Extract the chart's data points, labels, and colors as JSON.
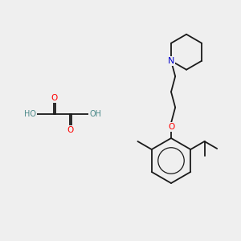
{
  "background_color": "#efefef",
  "bond_color": "#1a1a1a",
  "atom_colors": {
    "O": "#ff0000",
    "N": "#0000cc",
    "H": "#4a8888",
    "C": "#1a1a1a"
  },
  "figsize": [
    3.0,
    3.0
  ],
  "dpi": 100
}
